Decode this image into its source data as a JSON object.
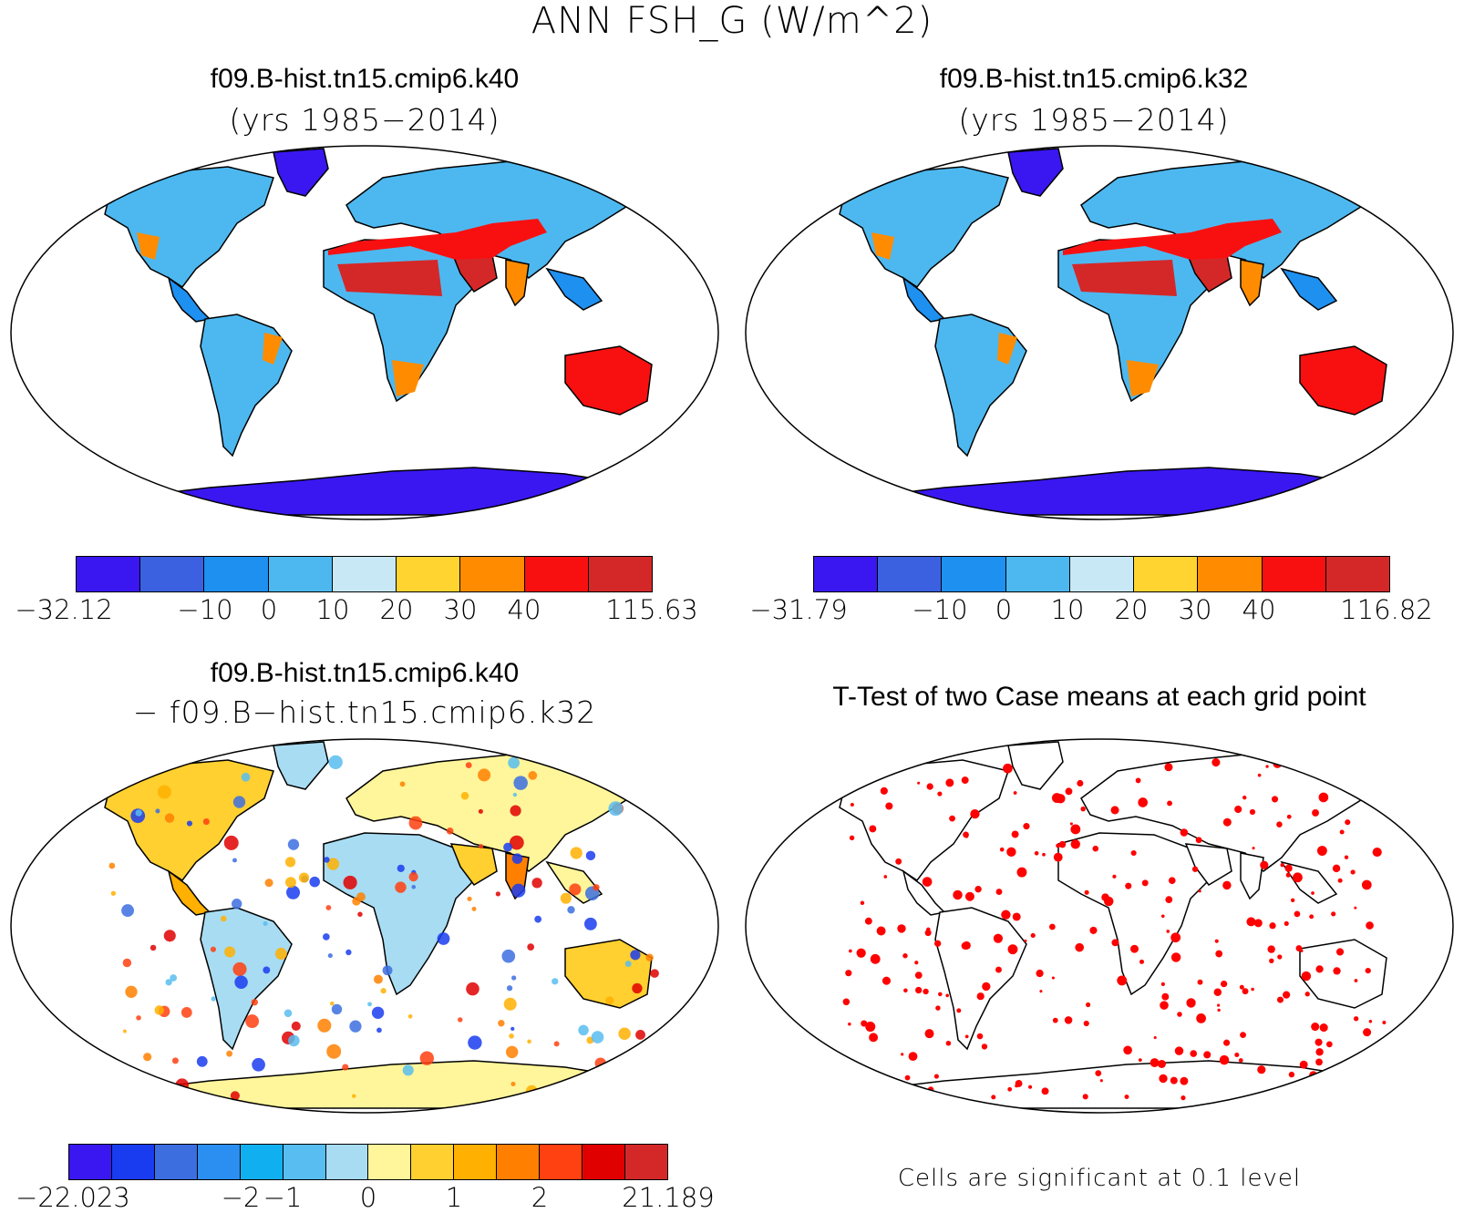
{
  "figure": {
    "title": "ANN FSH_G (W/m^2)"
  },
  "panels": {
    "top_left": {
      "title": "f09.B-hist.tn15.cmip6.k40",
      "subtitle": "(yrs 1985−2014)",
      "colorbar": {
        "colors": [
          "#3a17f0",
          "#3b60e0",
          "#1e90f0",
          "#4db8f0",
          "#c8e8f6",
          "#ffd330",
          "#ff8c00",
          "#f81010",
          "#d42828"
        ],
        "tick_labels": [
          "−32.12",
          "−10",
          "0",
          "10",
          "20",
          "30",
          "40",
          "115.63"
        ]
      }
    },
    "top_right": {
      "title": "f09.B-hist.tn15.cmip6.k32",
      "subtitle": "(yrs 1985−2014)",
      "colorbar": {
        "colors": [
          "#3a17f0",
          "#3b60e0",
          "#1e90f0",
          "#4db8f0",
          "#c8e8f6",
          "#ffd330",
          "#ff8c00",
          "#f81010",
          "#d42828"
        ],
        "tick_labels": [
          "−31.79",
          "−10",
          "0",
          "10",
          "20",
          "30",
          "40",
          "116.82"
        ]
      }
    },
    "bottom_left": {
      "title": "f09.B-hist.tn15.cmip6.k40",
      "subtitle": "− f09.B−hist.tn15.cmip6.k32",
      "colorbar": {
        "colors": [
          "#3a17f0",
          "#1a3cf0",
          "#3c6ee0",
          "#2a8ff0",
          "#10b0f0",
          "#58bdf0",
          "#a8dcf2",
          "#fff59a",
          "#ffd030",
          "#ffb000",
          "#ff8000",
          "#ff4010",
          "#e00000",
          "#d42828"
        ],
        "tick_labels": [
          "−22.023",
          "−2",
          "−1",
          "0",
          "1",
          "2",
          "21.189"
        ]
      }
    },
    "bottom_right": {
      "title": "T-Test of two Case means at each grid point",
      "note": "Cells are significant at 0.1 level"
    }
  }
}
